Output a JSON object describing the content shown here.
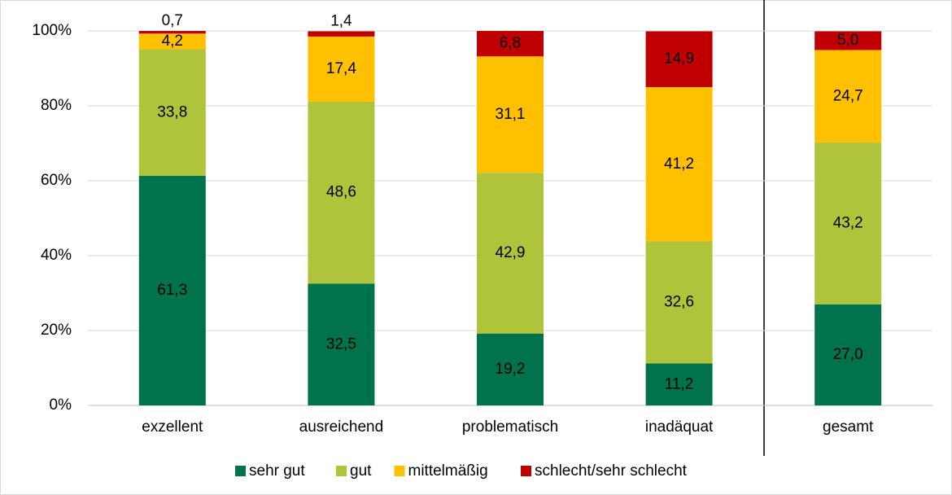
{
  "chart_data": {
    "type": "bar",
    "stacked": true,
    "categories": [
      "exzellent",
      "ausreichend",
      "problematisch",
      "inadäquat",
      "gesamt"
    ],
    "series": [
      {
        "name": "sehr gut",
        "color": "#00734d",
        "values": [
          61.3,
          32.5,
          19.2,
          11.2,
          27.0
        ],
        "value_labels": [
          "61,3",
          "32,5",
          "19,2",
          "11,2",
          "27,0"
        ]
      },
      {
        "name": "gut",
        "color": "#afc43b",
        "values": [
          33.8,
          48.6,
          42.9,
          32.6,
          43.2
        ],
        "value_labels": [
          "33,8",
          "48,6",
          "42,9",
          "32,6",
          "43,2"
        ]
      },
      {
        "name": "mittelmäßig",
        "color": "#ffc000",
        "values": [
          4.2,
          17.4,
          31.1,
          41.2,
          24.7
        ],
        "value_labels": [
          "4,2",
          "17,4",
          "31,1",
          "41,2",
          "24,7"
        ]
      },
      {
        "name": "schlecht/sehr schlecht",
        "color": "#c00000",
        "values": [
          0.7,
          1.4,
          6.8,
          14.9,
          5.0
        ],
        "value_labels": [
          "0,7",
          "1,4",
          "6,8",
          "14,9",
          "5,0"
        ]
      }
    ],
    "ylim": [
      0,
      100
    ],
    "yticks": [
      {
        "value": 0,
        "label": "0%"
      },
      {
        "value": 20,
        "label": "20%"
      },
      {
        "value": 40,
        "label": "40%"
      },
      {
        "value": 60,
        "label": "60%"
      },
      {
        "value": 80,
        "label": "80%"
      },
      {
        "value": 100,
        "label": "100%"
      }
    ],
    "grid": true,
    "legend": "bottom"
  }
}
